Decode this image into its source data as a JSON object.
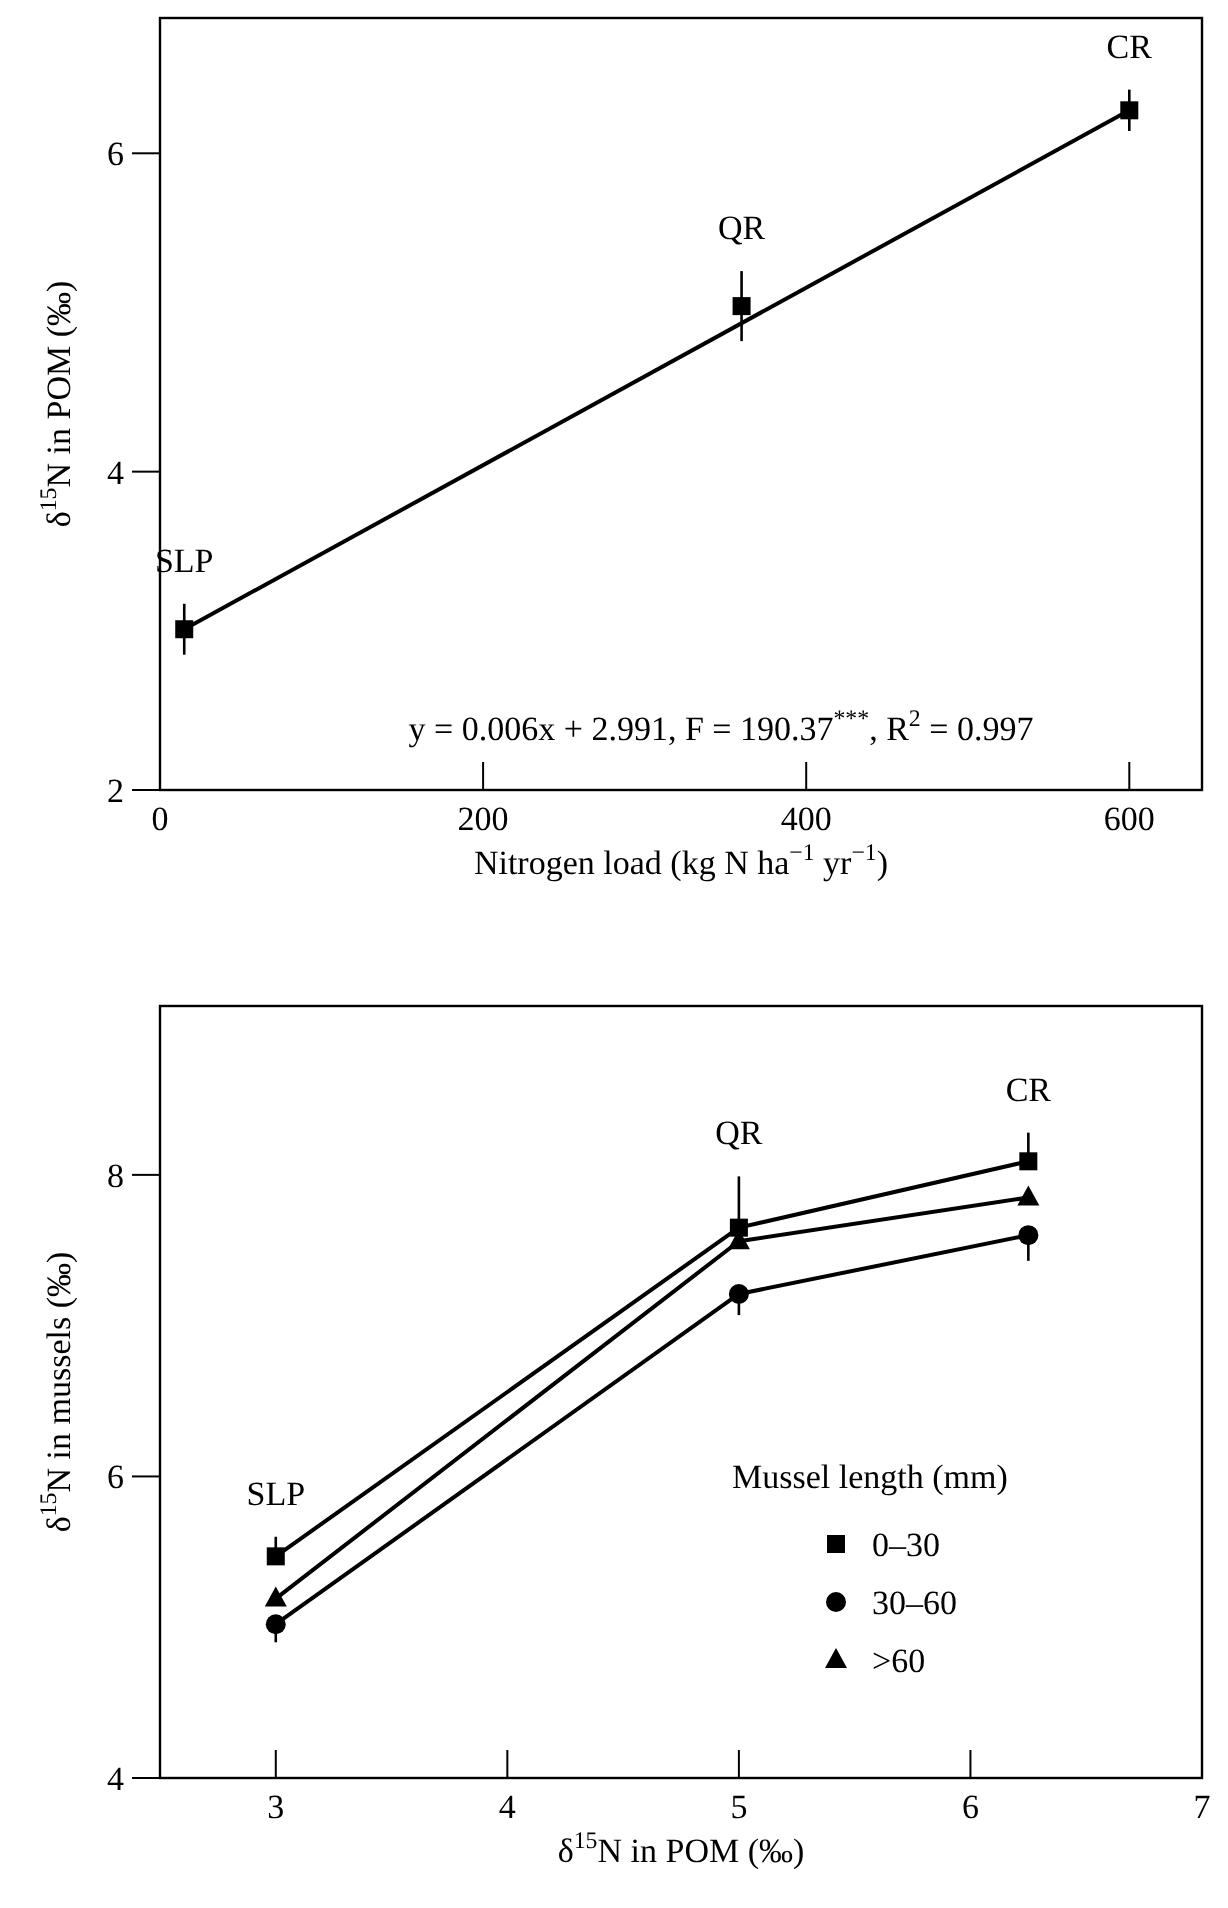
{
  "chart_data": [
    {
      "type": "scatter",
      "xlabel": "Nitrogen load (kg N ha$^{−1}$ yr$^{−1}$)",
      "ylabel": "δ$^{15}$N in POM (‰)",
      "xlim": [
        0,
        645
      ],
      "ylim": [
        2,
        6.85
      ],
      "xticks": [
        0,
        200,
        400,
        600
      ],
      "yticks": [
        2,
        4,
        6
      ],
      "grid": false,
      "legend": false,
      "series": [
        {
          "color": "#000000",
          "marker": "square",
          "x": [
            15,
            360,
            600
          ],
          "values": [
            3.01,
            5.04,
            6.27
          ],
          "errors": [
            0.16,
            0.22,
            0.13
          ]
        },
        {
          "type": "line",
          "color": "#000000",
          "marker": "none",
          "line_style": "solid",
          "x": [
            15,
            600
          ],
          "values": [
            3.01,
            6.27
          ]
        }
      ],
      "annotations": [
        {
          "text": "SLP",
          "x": 15,
          "y": 3.01
        },
        {
          "text": "QR",
          "x": 360,
          "y": 5.04
        },
        {
          "text": "CR",
          "x": 600,
          "y": 6.27
        },
        "y = 0.006x + 2.991, F = 190.37$^{***}$, R$^{2}$ = 0.997"
      ]
    },
    {
      "type": "line",
      "xlabel": "δ$^{15}$N in POM (‰)",
      "ylabel": "δ$^{15}$N in mussels (‰)",
      "xlim": [
        2.5,
        7
      ],
      "ylim": [
        4,
        9.12
      ],
      "xticks": [
        3,
        4,
        5,
        6,
        7
      ],
      "yticks": [
        4,
        6,
        8
      ],
      "grid": false,
      "legend": "bottom right",
      "legend_title": "Mussel length (mm)",
      "line_style": "solid",
      "series": [
        {
          "name": "0–30",
          "color": "#000000",
          "marker": "square",
          "x": [
            3,
            5,
            6.25
          ],
          "values": [
            5.47,
            7.65,
            8.09
          ],
          "errors": [
            [
              5.47,
              5.6
            ],
            [
              7.65,
              7.99
            ],
            [
              8.09,
              8.28
            ]
          ]
        },
        {
          "name": "30–60",
          "color": "#000000",
          "marker": "circle",
          "x": [
            3,
            5,
            6.25
          ],
          "values": [
            5.02,
            7.21,
            7.6
          ],
          "errors": [
            [
              4.9,
              5.02
            ],
            [
              7.07,
              7.21
            ],
            [
              7.43,
              7.6
            ]
          ]
        },
        {
          "name": ">60",
          "color": "#000000",
          "marker": "triangle",
          "x": [
            3,
            5,
            6.25
          ],
          "values": [
            5.19,
            7.56,
            7.85
          ]
        }
      ],
      "annotations": [
        {
          "text": "SLP",
          "x": 3,
          "y": 5.47
        },
        {
          "text": "QR",
          "x": 5,
          "y": 7.65
        },
        {
          "text": "CR",
          "x": 6.25,
          "y": 8.09
        }
      ]
    }
  ]
}
